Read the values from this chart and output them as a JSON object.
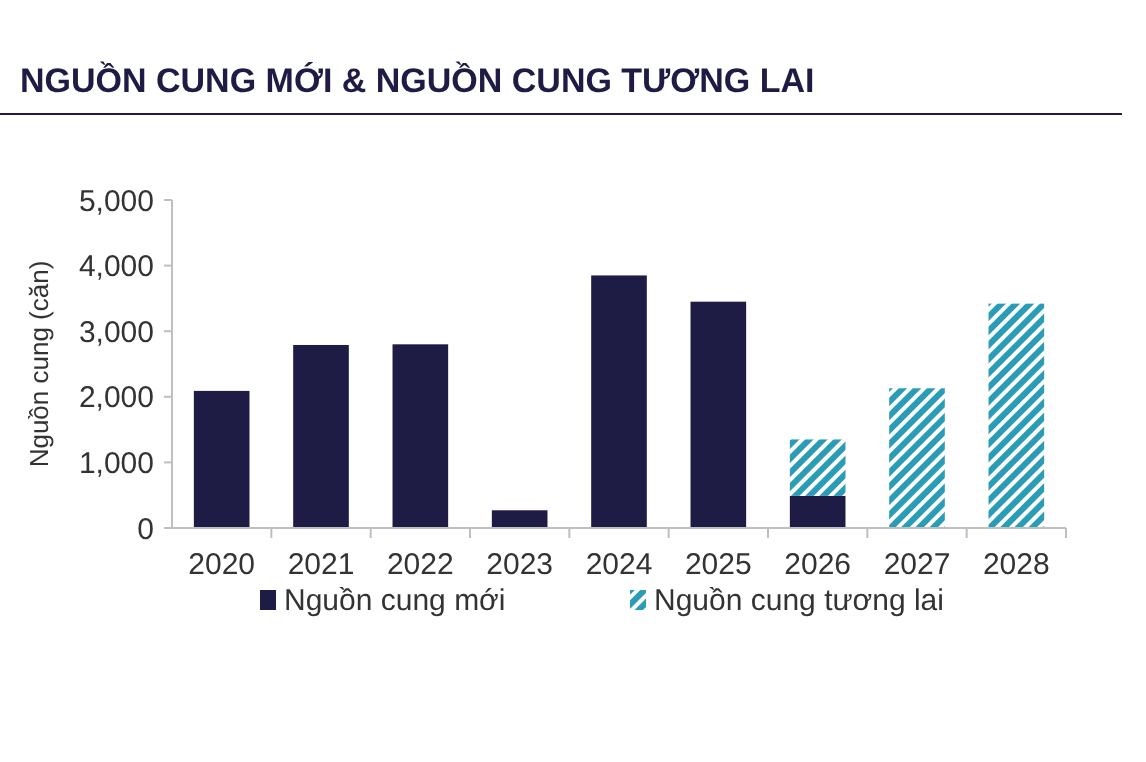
{
  "chart_data": {
    "type": "bar",
    "title": "NGUỒN CUNG MỚI & NGUỒN CUNG TƯƠNG LAI",
    "ylabel": "Nguồn cung (căn)",
    "categories": [
      "2020",
      "2021",
      "2022",
      "2023",
      "2024",
      "2025",
      "2026",
      "2027",
      "2028"
    ],
    "stacked": true,
    "series": [
      {
        "name": "Nguồn cung mới",
        "color": "#1e1b45",
        "values": [
          2090,
          2790,
          2800,
          270,
          3850,
          3450,
          490,
          null,
          null
        ]
      },
      {
        "name": "Nguồn cung tương lai",
        "color": "#2a9db5",
        "values": [
          null,
          null,
          null,
          null,
          null,
          null,
          860,
          2130,
          3420
        ]
      }
    ],
    "ylim": [
      0,
      5000
    ],
    "yticks": [
      {
        "value": 0,
        "label": "0"
      },
      {
        "value": 1000,
        "label": "1,000"
      },
      {
        "value": 2000,
        "label": "2,000"
      },
      {
        "value": 3000,
        "label": "3,000"
      },
      {
        "value": 4000,
        "label": "4,000"
      },
      {
        "value": 5000,
        "label": "5,000"
      }
    ],
    "grid": false,
    "legend": "bottom"
  }
}
